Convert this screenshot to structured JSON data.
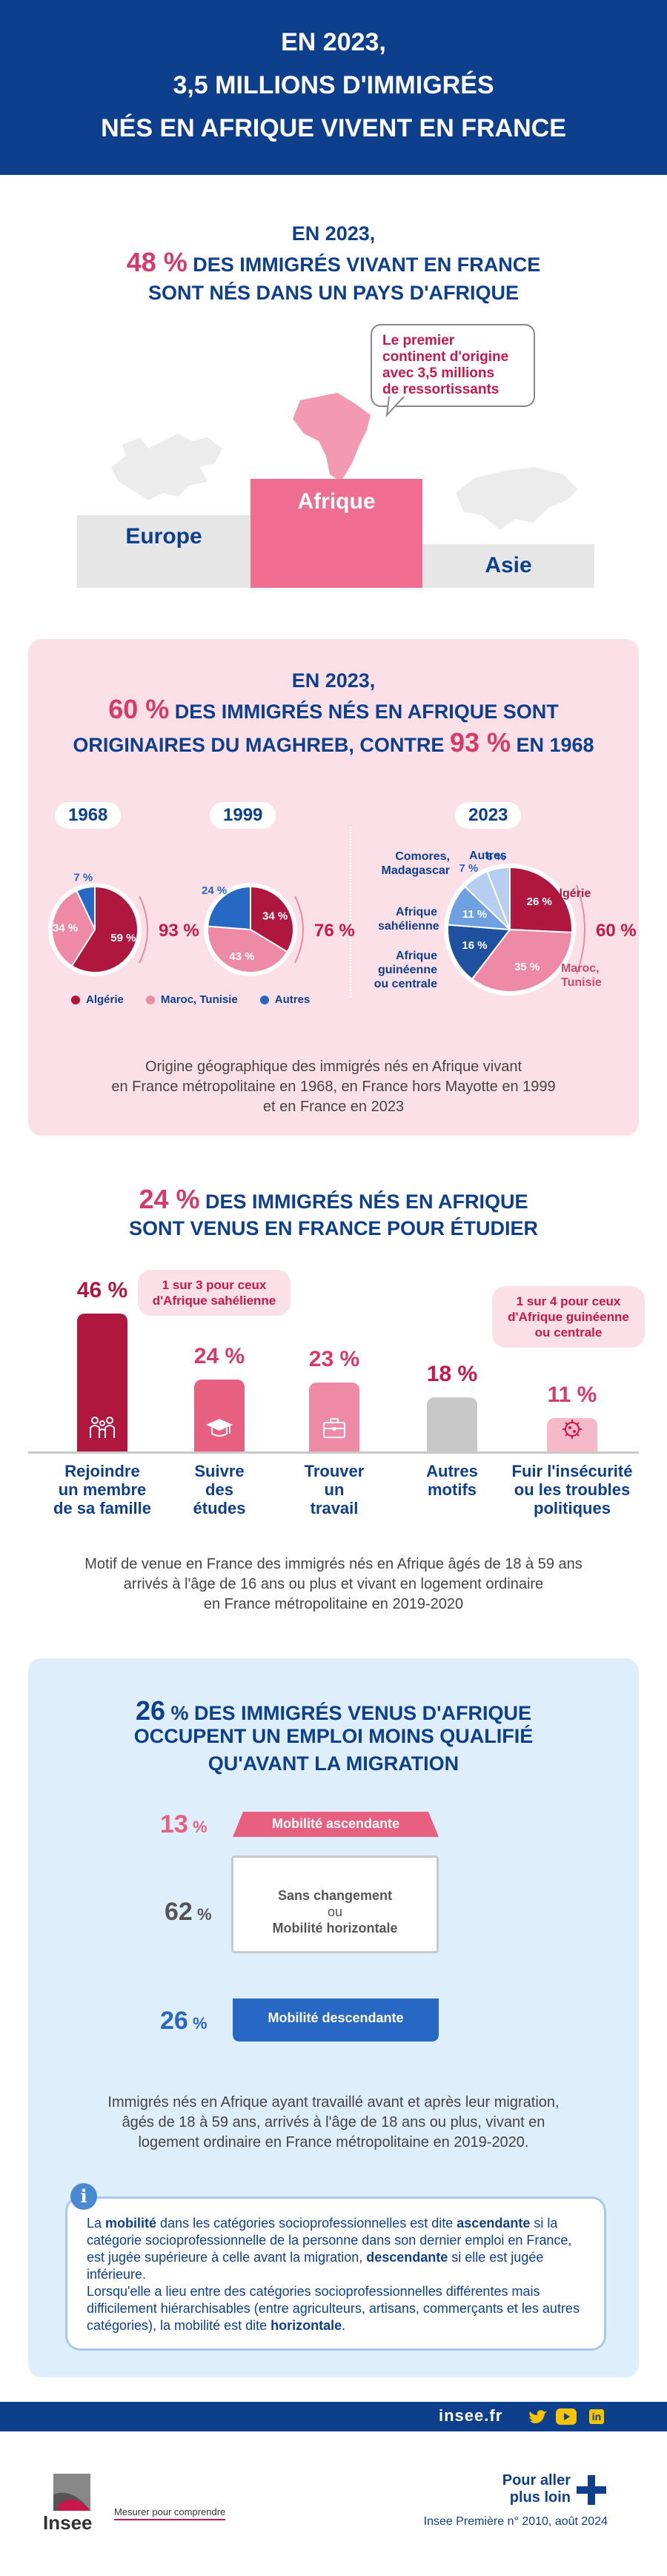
{
  "header": {
    "line1": "EN 2023,",
    "line2": "3,5 MILLIONS D'IMMIGRÉS",
    "line3": "NÉS EN AFRIQUE VIVENT EN FRANCE"
  },
  "section1": {
    "title_line1": "EN 2023,",
    "title_pct": "48 %",
    "title_line2_rest": " DES IMMIGRÉS VIVANT EN FRANCE",
    "title_line3": "SONT NÉS DANS UN PAYS D'AFRIQUE",
    "bubble_line1": "Le premier",
    "bubble_line2": "continent d'origine",
    "bubble_line3": "avec 3,5 millions",
    "bubble_line4": "de ressortissants",
    "podium": [
      "Europe",
      "Afrique",
      "Asie"
    ],
    "colors": {
      "africa": "#ef6d91",
      "other": "#e6e6e6"
    }
  },
  "section2": {
    "title_line1": "EN 2023,",
    "title_pct": "60 %",
    "title_line2_rest": " DES IMMIGRÉS NÉS EN AFRIQUE SONT",
    "title_line3_a": "ORIGINAIRES DU MAGHREB, CONTRE ",
    "title_pct2": "93 %",
    "title_line3_b": " EN 1968",
    "years": [
      "1968",
      "1999",
      "2023"
    ],
    "pie1968": {
      "maghreb_total": "93 %",
      "slices": [
        {
          "label": "59 %",
          "value": 59
        },
        {
          "label": "34 %",
          "value": 34
        },
        {
          "label": "7 %",
          "value": 7
        }
      ]
    },
    "pie1999": {
      "maghreb_total": "76 %",
      "slices": [
        {
          "label": "34 %",
          "value": 34
        },
        {
          "label": "43 %",
          "value": 43
        },
        {
          "label": "24 %",
          "value": 24
        }
      ]
    },
    "pie2023": {
      "maghreb_total": "60 %",
      "slices": [
        {
          "label": "26 %",
          "value": 26,
          "name": "Algérie"
        },
        {
          "label": "35 %",
          "value": 35,
          "name": "Maroc, Tunisie"
        },
        {
          "label": "16 %",
          "value": 16,
          "name": "Afrique guinéenne ou centrale"
        },
        {
          "label": "11 %",
          "value": 11,
          "name": "Afrique sahélienne"
        },
        {
          "label": "7 %",
          "value": 7,
          "name": "Comores, Madagascar"
        },
        {
          "label": "6 %",
          "value": 6,
          "name": "Autres"
        }
      ],
      "name_algerie": "Algérie",
      "name_maroc_1": "Maroc,",
      "name_maroc_2": "Tunisie",
      "name_comores_1": "Comores,",
      "name_comores_2": "Madagascar",
      "name_autres": "Autres",
      "name_sahel_1": "Afrique",
      "name_sahel_2": "sahélienne",
      "name_guin_1": "Afrique",
      "name_guin_2": "guinéenne",
      "name_guin_3": "ou centrale"
    },
    "legend": [
      {
        "label": "Algérie",
        "color": "#b0173f"
      },
      {
        "label": "Maroc, Tunisie",
        "color": "#ee8aa6"
      },
      {
        "label": "Autres",
        "color": "#2768c4"
      }
    ],
    "colors": [
      "#b0173f",
      "#ee8aa6",
      "#2768c4",
      "#2050a0",
      "#6fa0e2",
      "#b6cff0"
    ],
    "caption_line1": "Origine géographique des immigrés nés en Afrique vivant",
    "caption_line2": "en France métropolitaine en 1968, en France hors Mayotte en 1999",
    "caption_line3": "et en France en 2023"
  },
  "section3": {
    "title_pct": "24 %",
    "title_line1_rest": " DES IMMIGRÉS NÉS EN AFRIQUE",
    "title_line2": "SONT VENUS EN FRANCE POUR ÉTUDIER",
    "bubble1_line1": "1 sur 3 pour ceux",
    "bubble1_line2": "d'Afrique sahélienne",
    "bubble2_line1": "1 sur 4 pour ceux",
    "bubble2_line2": "d'Afrique guinéenne",
    "bubble2_line3": "ou centrale",
    "bars": [
      {
        "value": 46,
        "label": "46 %",
        "l1": "Rejoindre",
        "l2": "un membre",
        "l3": "de sa famille",
        "color": "#b0173f",
        "icon": "family-icon"
      },
      {
        "value": 24,
        "label": "24 %",
        "l1": "Suivre",
        "l2": "des",
        "l3": "études",
        "color": "#e8607f",
        "icon": "graduation-cap-icon"
      },
      {
        "value": 23,
        "label": "23 %",
        "l1": "Trouver",
        "l2": "un",
        "l3": "travail",
        "color": "#ee8aa6",
        "icon": "briefcase-icon"
      },
      {
        "value": 18,
        "label": "18 %",
        "l1": "Autres",
        "l2": "motifs",
        "l3": "",
        "color": "#c8c8c8",
        "icon": ""
      },
      {
        "value": 11,
        "label": "11 %",
        "l1": "Fuir l'insécurité",
        "l2": "ou les troubles",
        "l3": "politiques",
        "color": "#f6b9c9",
        "icon": "virus-icon"
      }
    ],
    "caption_line1": "Motif de venue en France des immigrés nés en Afrique âgés de 18 à 59 ans",
    "caption_line2": "arrivés à l'âge de 16 ans ou plus et vivant en logement ordinaire",
    "caption_line3": "en France métropolitaine en 2019-2020"
  },
  "section4": {
    "title_pct": "26",
    "title_pct_sign": " %",
    "title_line1_rest": " DES IMMIGRÉS VENUS D'AFRIQUE",
    "title_line2": "OCCUPENT UN EMPLOI MOINS QUALIFIÉ",
    "title_line3": "QU'AVANT LA MIGRATION",
    "rows": [
      {
        "value": "13",
        "sign": " %",
        "label": "Mobilité ascendante"
      },
      {
        "value": "62",
        "sign": " %",
        "label_a": "Sans changement",
        "label_b": "ou",
        "label_c": "Mobilité horizontale"
      },
      {
        "value": "26",
        "sign": " %",
        "label": "Mobilité descendante"
      }
    ],
    "caption_line1": "Immigrés nés en Afrique ayant travaillé avant et après leur migration,",
    "caption_line2": "âgés de 18 à 59 ans, arrivés à l'âge de 18 ans ou plus, vivant en",
    "caption_line3": "logement ordinaire en France métropolitaine en 2019-2020.",
    "info": {
      "p1_a": "La ",
      "p1_b": "mobilité",
      "p1_c": " dans les catégories socioprofessionnelles est dite ",
      "p1_d": "ascendante",
      "p1_e": " si la catégorie socioprofessionnelle de la personne dans son dernier emploi en France, est jugée supérieure à celle avant la migration, ",
      "p1_f": "descendante",
      "p1_g": " si elle est jugée inférieure.",
      "p2_a": "Lorsqu'elle a lieu entre des catégories socioprofessionnelles différentes mais difficilement hiérarchisables (entre agriculteurs, artisans, commerçants et les autres catégories), la mobilité est dite ",
      "p2_b": "horizontale",
      "p2_c": "."
    }
  },
  "footer": {
    "site": "insee.fr",
    "logo_text": "Insee",
    "tagline": "Mesurer pour comprendre",
    "pour_aller_1": "Pour aller",
    "pour_aller_2": "plus loin",
    "reference": "Insee Première n° 2010, août 2024"
  }
}
